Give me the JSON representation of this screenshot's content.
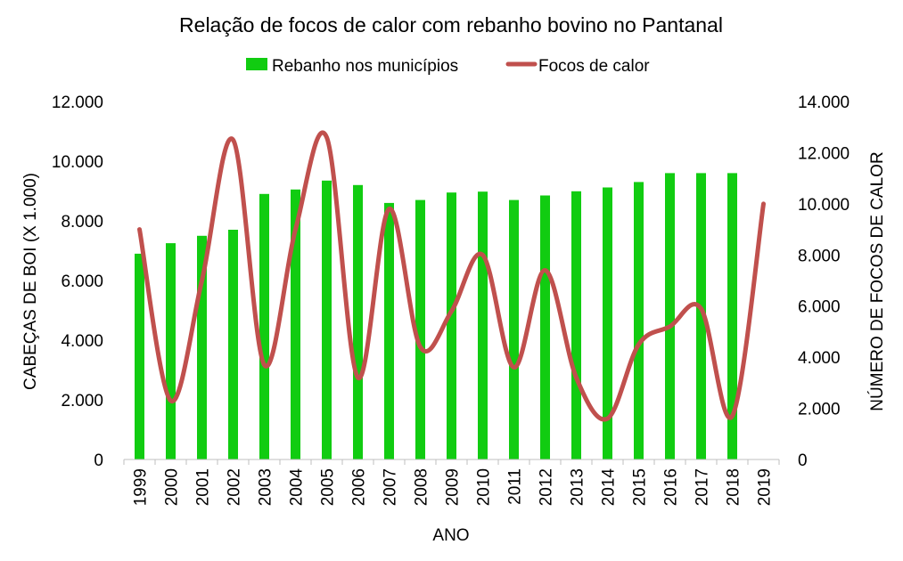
{
  "chart_data": {
    "type": "bar",
    "title": "Relação de focos de calor com rebanho bovino no Pantanal",
    "xlabel": "ANO",
    "ylabel": "CABEÇAS DE BOI (X 1.000)",
    "y2label": "NÚMERO DE FOCOS DE CALOR",
    "ylim": [
      0,
      12000
    ],
    "y2lim": [
      0,
      14000
    ],
    "yticks": [
      "0",
      "2.000",
      "4.000",
      "6.000",
      "8.000",
      "10.000",
      "12.000"
    ],
    "y2ticks": [
      "0",
      "2.000",
      "4.000",
      "6.000",
      "8.000",
      "10.000",
      "12.000",
      "14.000"
    ],
    "legend_position": "top",
    "grid": false,
    "categories": [
      "1999",
      "2000",
      "2001",
      "2002",
      "2003",
      "2004",
      "2005",
      "2006",
      "2007",
      "2008",
      "2009",
      "2010",
      "2011",
      "2012",
      "2013",
      "2014",
      "2015",
      "2016",
      "2017",
      "2018",
      "2019"
    ],
    "series": [
      {
        "name": "Rebanho nos municípios",
        "type": "bar",
        "axis": "left",
        "color": "#11cc11",
        "values": [
          6900,
          7250,
          7500,
          7700,
          8900,
          9050,
          9350,
          9200,
          8600,
          8700,
          8950,
          8980,
          8700,
          8850,
          8990,
          9120,
          9300,
          9600,
          9600,
          9600,
          null
        ]
      },
      {
        "name": "Focos de calor",
        "type": "line",
        "axis": "right",
        "color": "#c0504d",
        "values": [
          9000,
          2300,
          7000,
          12500,
          3700,
          9000,
          12600,
          3200,
          9800,
          4400,
          5800,
          8000,
          3600,
          7400,
          3200,
          1600,
          4500,
          5200,
          5900,
          1700,
          10000
        ]
      }
    ]
  }
}
